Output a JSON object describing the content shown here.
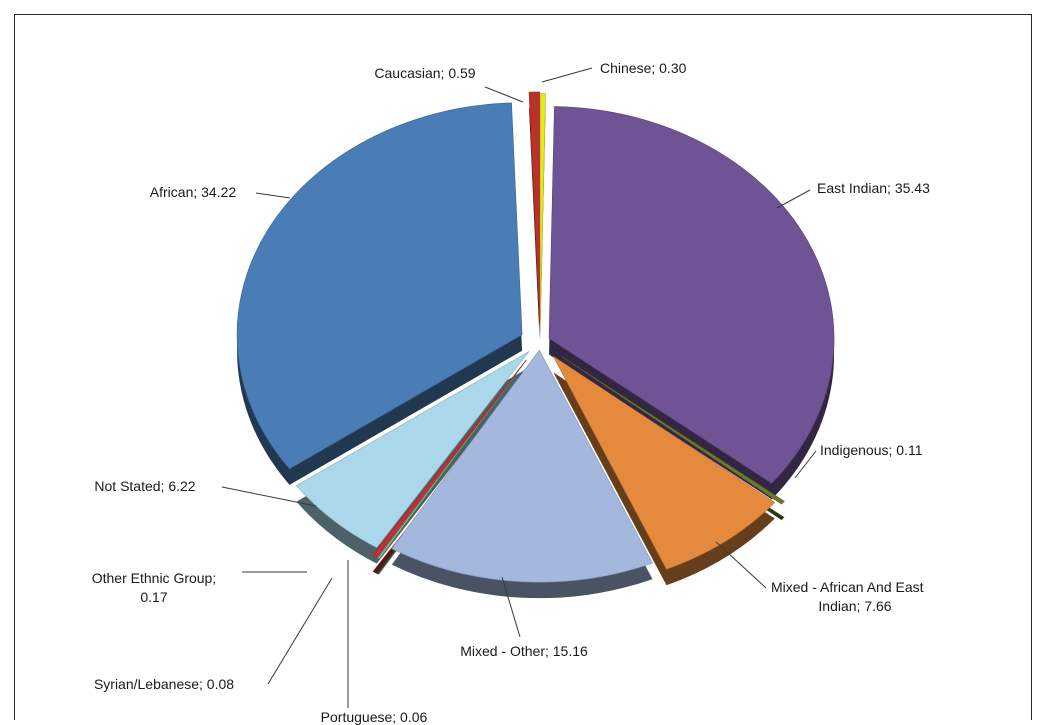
{
  "chart_data": {
    "type": "pie",
    "title": "",
    "slices": [
      {
        "label": "Chinese",
        "value": 0.3,
        "display": "Chinese; 0.30",
        "color": "#e6e622"
      },
      {
        "label": "East Indian",
        "value": 35.43,
        "display": "East Indian; 35.43",
        "color": "#6e5494"
      },
      {
        "label": "Indigenous",
        "value": 0.11,
        "display": "Indigenous; 0.11",
        "color": "#6a7a2a"
      },
      {
        "label": "Mixed - African And East Indian",
        "value": 7.66,
        "display_lines": [
          "Mixed - African And East",
          "Indian; 7.66"
        ],
        "color": "#e58a3c"
      },
      {
        "label": "Mixed - Other",
        "value": 15.16,
        "display": "Mixed - Other; 15.16",
        "color": "#a3b8dc"
      },
      {
        "label": "Portuguese",
        "value": 0.06,
        "display": "Portuguese; 0.06",
        "color": "#e6e622"
      },
      {
        "label": "Syrian/Lebanese",
        "value": 0.08,
        "display": "Syrian/Lebanese; 0.08",
        "color": "#2e8fd0"
      },
      {
        "label": "Other Ethnic Group",
        "value": 0.17,
        "display_lines": [
          "Other Ethnic Group;",
          "0.17"
        ],
        "color": "#d42a2a"
      },
      {
        "label": "Not Stated",
        "value": 6.22,
        "display": "Not Stated; 6.22",
        "color": "#aad8ea"
      },
      {
        "label": "African",
        "value": 34.22,
        "display": "African; 34.22",
        "color": "#4a7cb5"
      },
      {
        "label": "Caucasian",
        "value": 0.59,
        "display": "Caucasian; 0.59",
        "color": "#b8322a"
      }
    ]
  }
}
